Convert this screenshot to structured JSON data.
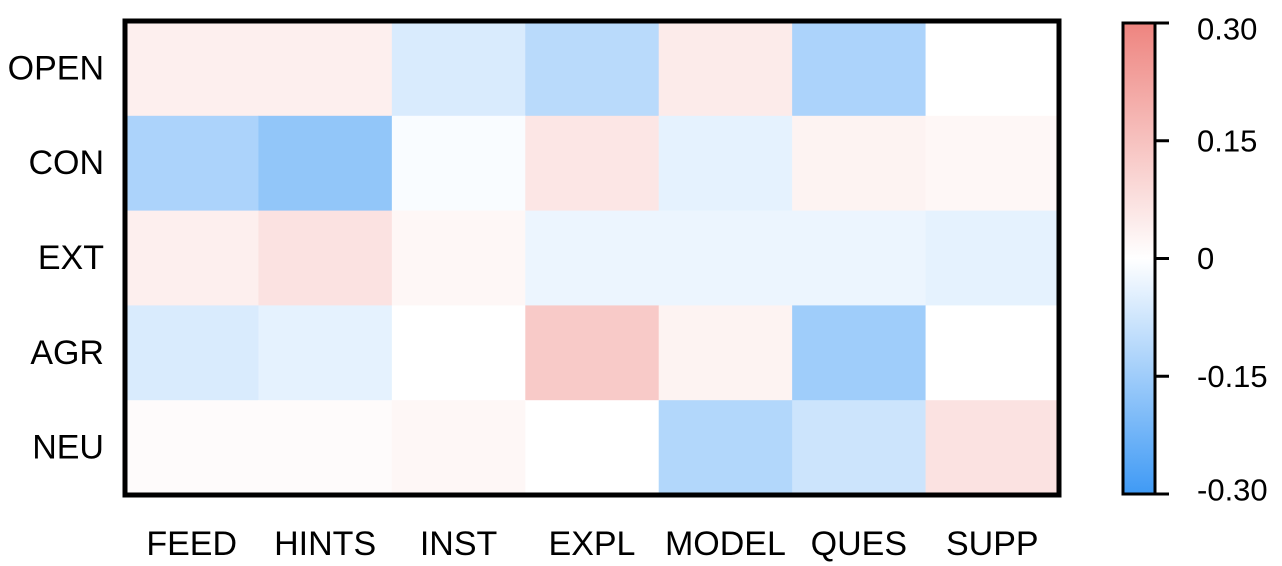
{
  "chart_data": {
    "type": "heatmap",
    "title": "",
    "xlabel": "",
    "ylabel": "",
    "x_categories": [
      "FEED",
      "HINTS",
      "INST",
      "EXPL",
      "MODEL",
      "QUES",
      "SUPP"
    ],
    "y_categories": [
      "OPEN",
      "CON",
      "EXT",
      "AGR",
      "NEU"
    ],
    "values": [
      [
        0.04,
        0.04,
        -0.06,
        -0.11,
        0.05,
        -0.13,
        0.0
      ],
      [
        -0.13,
        -0.17,
        -0.01,
        0.06,
        -0.04,
        0.03,
        0.02
      ],
      [
        0.04,
        0.07,
        0.02,
        -0.03,
        -0.03,
        -0.03,
        -0.04
      ],
      [
        -0.06,
        -0.04,
        0.0,
        0.13,
        0.03,
        -0.15,
        0.0
      ],
      [
        0.01,
        0.01,
        0.02,
        0.0,
        -0.12,
        -0.08,
        0.07
      ]
    ],
    "colorbar": {
      "min": -0.3,
      "max": 0.3,
      "ticks": [
        0.3,
        0.15,
        0,
        -0.15,
        -0.3
      ],
      "tick_labels": [
        "0.30",
        "0.15",
        "0",
        "-0.15",
        "-0.30"
      ],
      "low_color": "#3f9af5",
      "mid_color": "#ffffff",
      "high_color": "#ee847f"
    }
  }
}
